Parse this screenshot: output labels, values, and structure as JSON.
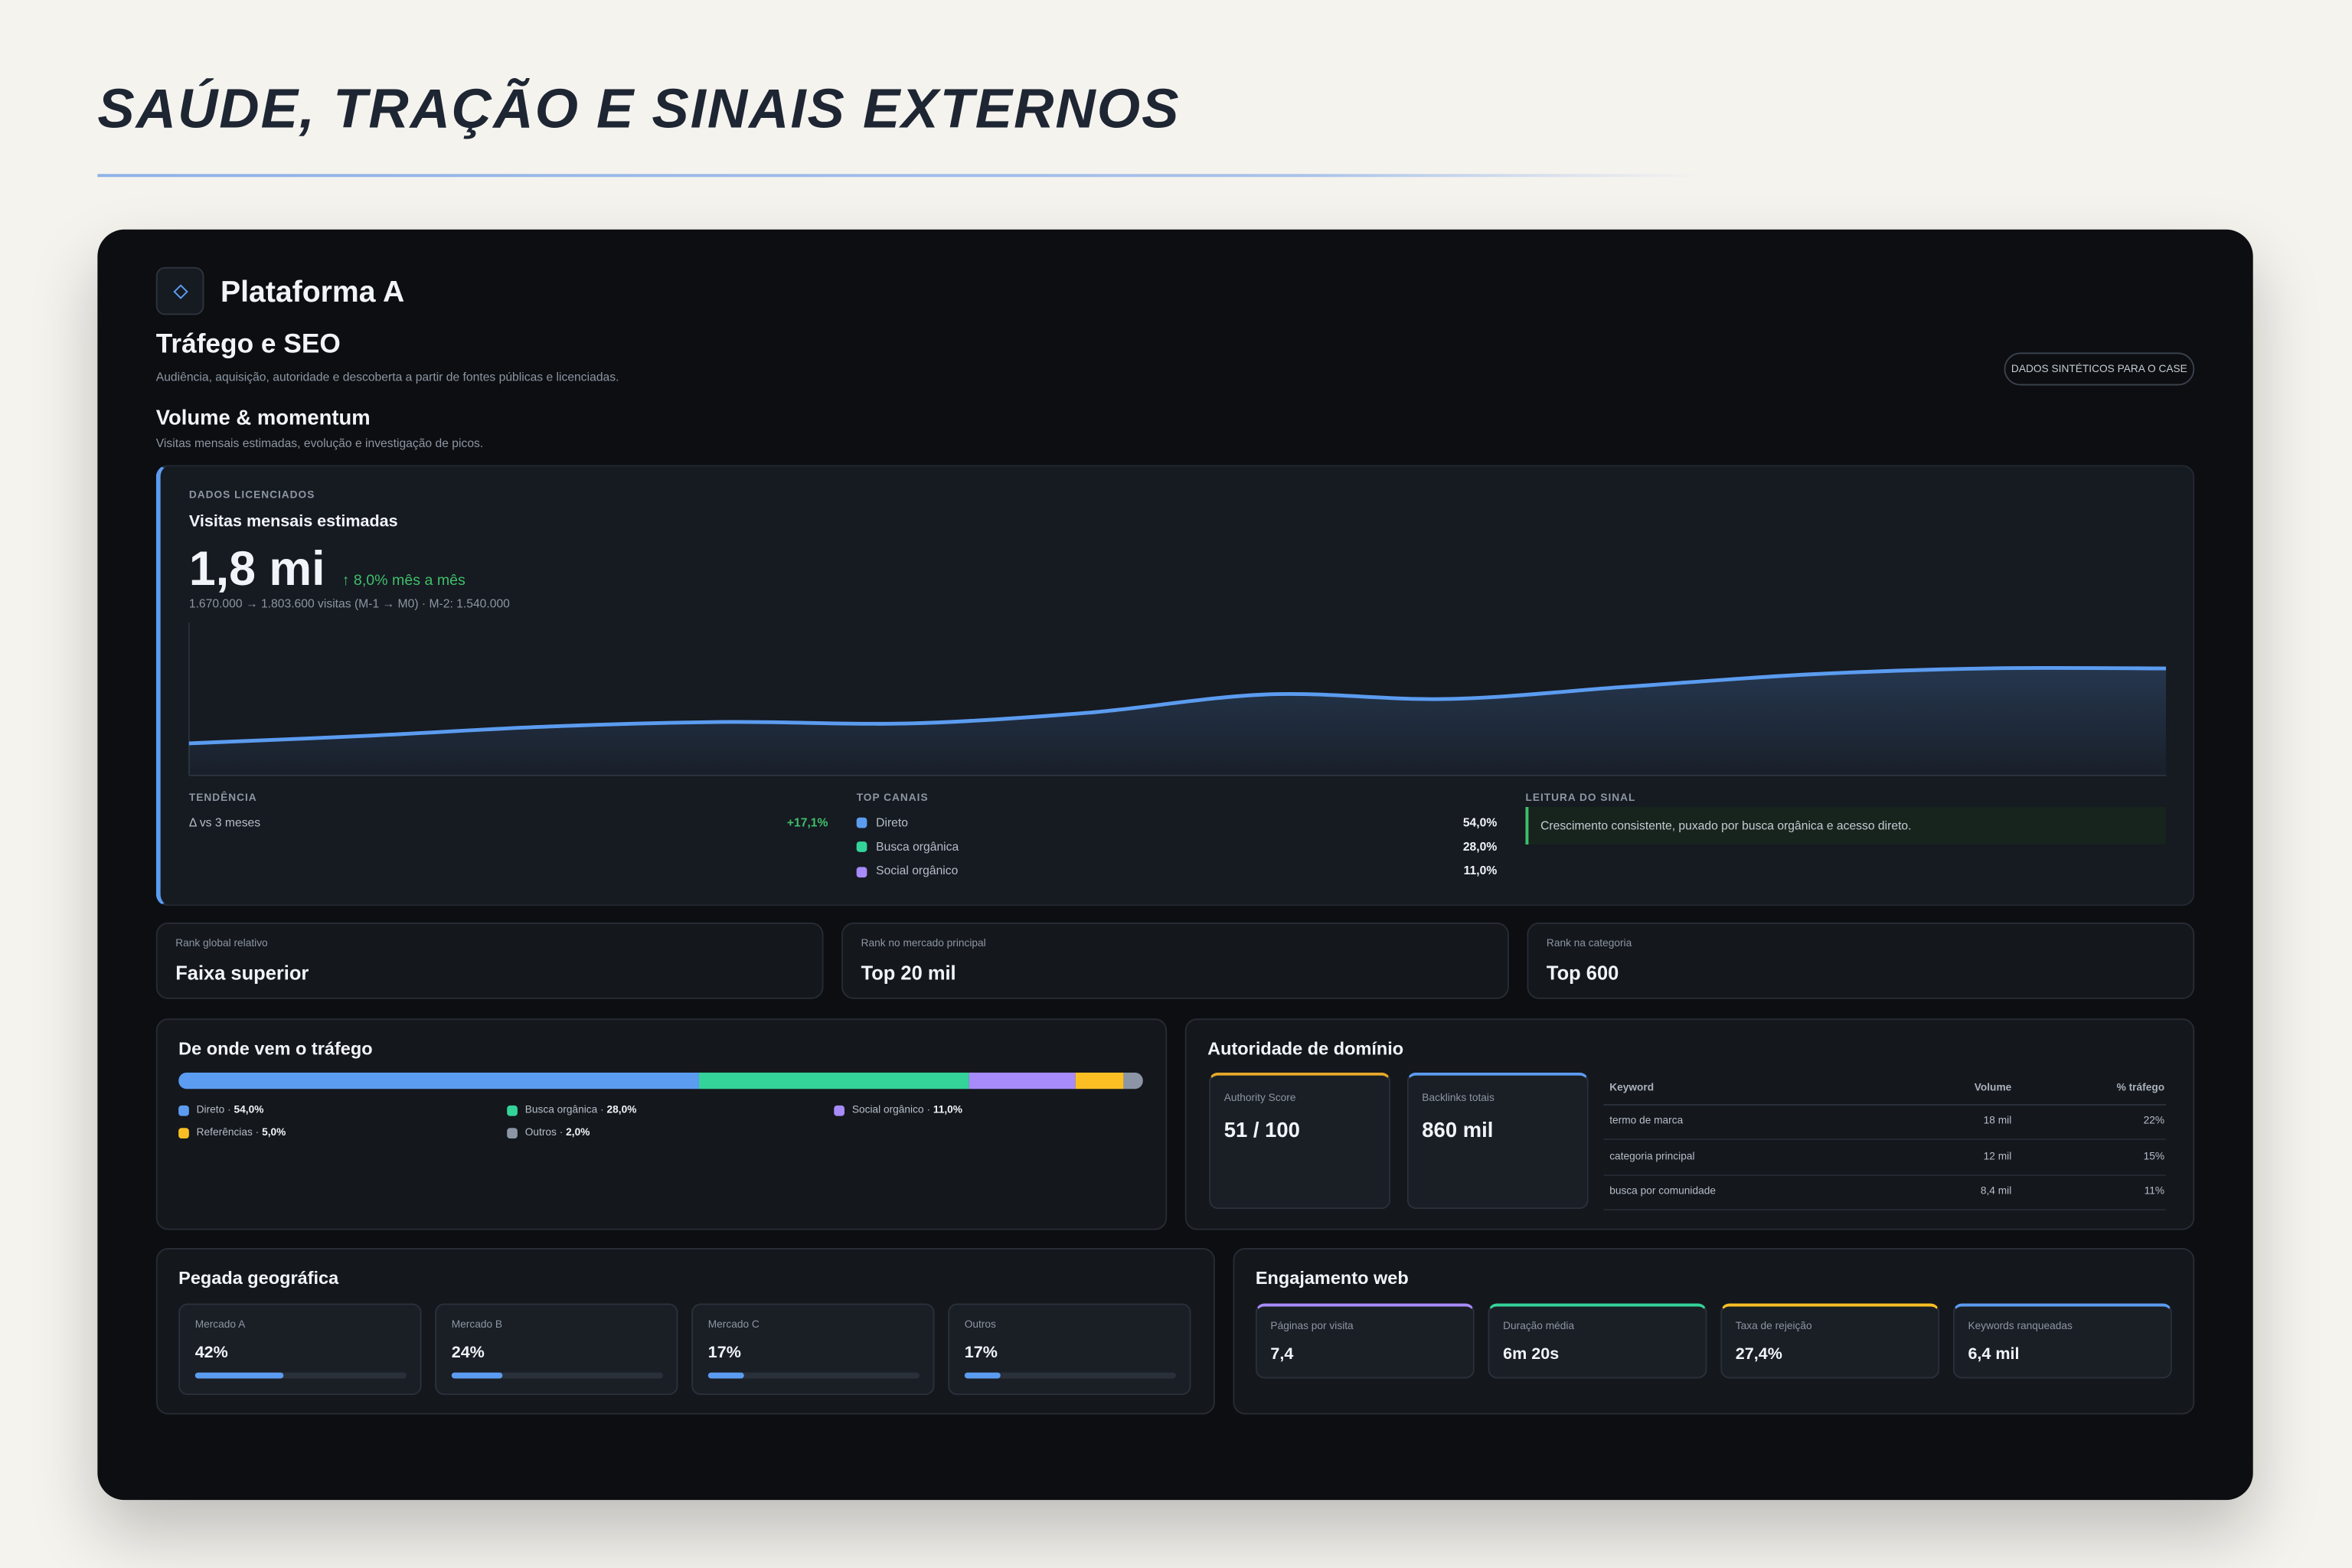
{
  "slide_title": "SAÚDE, TRAÇÃO E SINAIS EXTERNOS",
  "platform": "Plataforma A",
  "header": {
    "title": "Tráfego e SEO",
    "subtitle": "Audiência, aquisição, autoridade e descoberta a partir de fontes públicas e licenciadas.",
    "badge": "DADOS SINTÉTICOS PARA O CASE"
  },
  "section": {
    "title": "Volume & momentum",
    "subtitle": "Visitas mensais estimadas, evolução e investigação de picos."
  },
  "visits": {
    "eyebrow": "DADOS LICENCIADOS",
    "title": "Visitas mensais estimadas",
    "value": "1,8 mi",
    "delta": "↑ 8,0% mês a mês",
    "detail": "1.670.000 → 1.803.600 visitas (M-1 → M0) · M-2: 1.540.000"
  },
  "chart_data": {
    "type": "area",
    "categories": [
      null,
      null,
      null,
      null,
      null,
      null,
      null,
      null,
      null,
      null,
      null,
      null
    ],
    "values": [
      21,
      26,
      32,
      35,
      34,
      41,
      53,
      50,
      58,
      66,
      70,
      70
    ],
    "ylim": [
      0,
      100
    ],
    "color": "#5b9cf0"
  },
  "trend": {
    "label": "TENDÊNCIA",
    "name": "Δ vs 3 meses",
    "value": "+17,1%"
  },
  "channels": {
    "label": "TOP CANAIS",
    "items": [
      {
        "name": "Direto",
        "value": "54,0%",
        "color": "#5b9cf0"
      },
      {
        "name": "Busca orgânica",
        "value": "28,0%",
        "color": "#34d399"
      },
      {
        "name": "Social orgânico",
        "value": "11,0%",
        "color": "#a78bfa"
      }
    ]
  },
  "signal": {
    "label": "LEITURA DO SINAL",
    "text": "Crescimento consistente, puxado por busca orgânica e acesso direto."
  },
  "ranks": [
    {
      "label": "Rank global relativo",
      "value": "Faixa superior"
    },
    {
      "label": "Rank no mercado principal",
      "value": "Top 20 mil"
    },
    {
      "label": "Rank na categoria",
      "value": "Top 600"
    }
  ],
  "traffic_sources": {
    "title": "De onde vem o tráfego",
    "separator": "·",
    "items": [
      {
        "name": "Direto",
        "value": 54,
        "label": "54,0%",
        "color": "#5b9cf0"
      },
      {
        "name": "Busca orgânica",
        "value": 28,
        "label": "28,0%",
        "color": "#34d399"
      },
      {
        "name": "Social orgânico",
        "value": 11,
        "label": "11,0%",
        "color": "#a78bfa"
      },
      {
        "name": "Referências",
        "value": 5,
        "label": "5,0%",
        "color": "#fbbf24"
      },
      {
        "name": "Outros",
        "value": 2,
        "label": "2,0%",
        "color": "#8b95a5"
      }
    ]
  },
  "domain": {
    "title": "Autoridade de domínio",
    "metrics": [
      {
        "label": "Authority Score",
        "value": "51 / 100",
        "color": "#e5a82a"
      },
      {
        "label": "Backlinks totais",
        "value": "860 mil",
        "color": "#5b9cf0"
      }
    ],
    "table": {
      "headers": [
        "Keyword",
        "Volume",
        "% tráfego"
      ],
      "rows": [
        [
          "termo de marca",
          "18 mil",
          "22%"
        ],
        [
          "categoria principal",
          "12 mil",
          "15%"
        ],
        [
          "busca por comunidade",
          "8,4 mil",
          "11%"
        ]
      ]
    }
  },
  "geo": {
    "title": "Pegada geográfica",
    "color": "#5b9cf0",
    "markets": [
      {
        "name": "Mercado A",
        "value": 42,
        "label": "42%"
      },
      {
        "name": "Mercado B",
        "value": 24,
        "label": "24%"
      },
      {
        "name": "Mercado C",
        "value": 17,
        "label": "17%"
      },
      {
        "name": "Outros",
        "value": 17,
        "label": "17%"
      }
    ]
  },
  "engagement": {
    "title": "Engajamento web",
    "metrics": [
      {
        "label": "Páginas por visita",
        "value": "7,4",
        "color": "#a78bfa"
      },
      {
        "label": "Duração média",
        "value": "6m 20s",
        "color": "#34d399"
      },
      {
        "label": "Taxa de rejeição",
        "value": "27,4%",
        "color": "#fbbf24"
      },
      {
        "label": "Keywords ranqueadas",
        "value": "6,4 mil",
        "color": "#5b9cf0"
      }
    ]
  }
}
